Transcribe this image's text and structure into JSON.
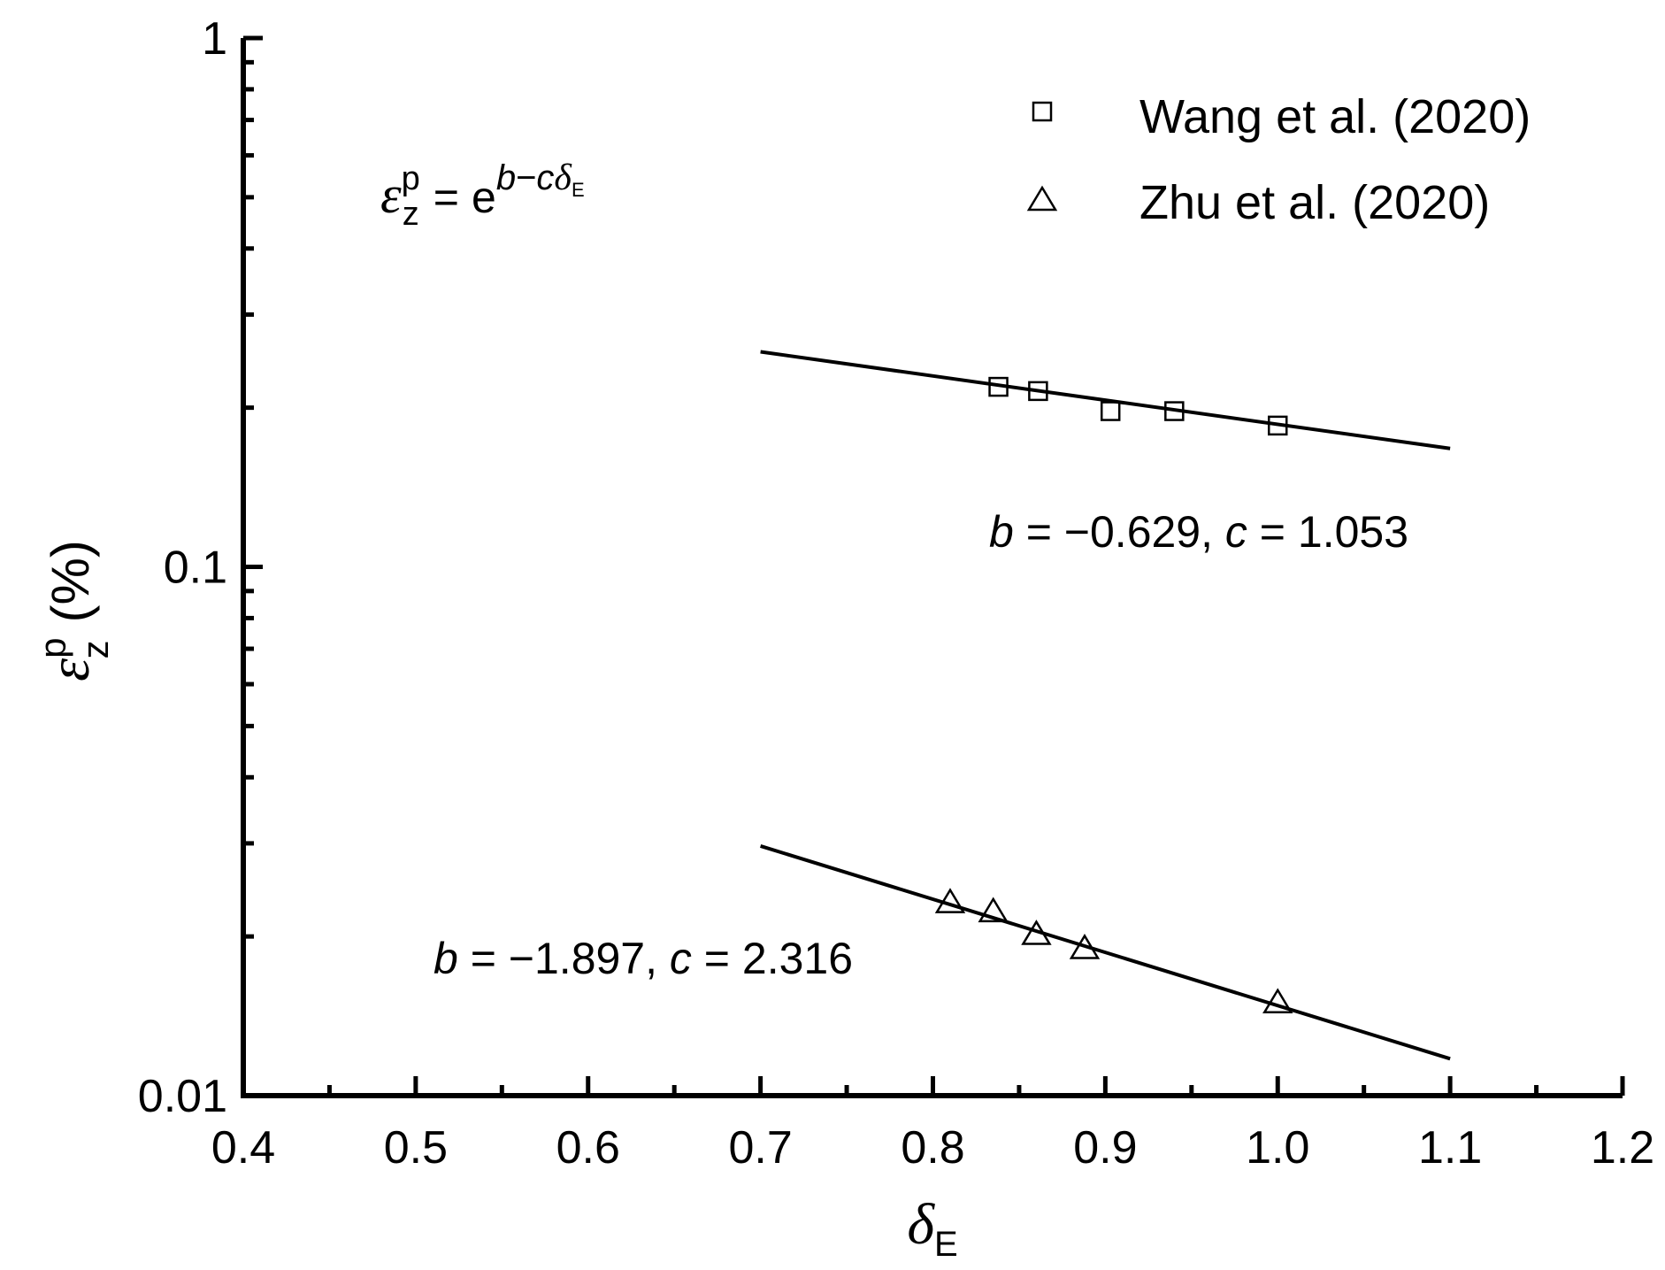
{
  "chart_data": {
    "type": "scatter",
    "x_axis": {
      "symbol": "δ",
      "subscript": "E",
      "range": [
        0.4,
        1.2
      ],
      "ticks": [
        "0.4",
        "0.5",
        "0.6",
        "0.7",
        "0.8",
        "0.9",
        "1.0",
        "1.1",
        "1.2"
      ],
      "minor_step": 0.05
    },
    "y_axis": {
      "symbol": "ε",
      "superscript": "p",
      "subscript": "z",
      "unit": "(%)",
      "scale": "log",
      "range": [
        0.01,
        1
      ],
      "ticks": [
        "0.01",
        "0.1",
        "1"
      ]
    },
    "equation": {
      "lhs_symbol": "ε",
      "lhs_sup": "p",
      "lhs_sub": "z",
      "equals": "=",
      "base": "e",
      "exp_b": "b",
      "exp_minus": "−",
      "exp_c": "c",
      "exp_delta": "δ",
      "exp_sub": "E"
    },
    "series": [
      {
        "name": "Wang et al. (2020)",
        "marker": "square",
        "points": [
          {
            "x": 0.838,
            "y": 0.219
          },
          {
            "x": 0.861,
            "y": 0.215
          },
          {
            "x": 0.903,
            "y": 0.197
          },
          {
            "x": 0.94,
            "y": 0.197
          },
          {
            "x": 1.0,
            "y": 0.185
          }
        ],
        "fit": {
          "b": -0.629,
          "c": 1.053,
          "x_range": [
            0.7,
            1.1
          ]
        },
        "fit_label": {
          "b_sym": "b",
          "b_text": " = −0.629, ",
          "c_sym": "c",
          "c_text": " = 1.053"
        }
      },
      {
        "name": "Zhu et al. (2020)",
        "marker": "triangle",
        "points": [
          {
            "x": 0.81,
            "y": 0.0232
          },
          {
            "x": 0.835,
            "y": 0.0223
          },
          {
            "x": 0.86,
            "y": 0.0202
          },
          {
            "x": 0.888,
            "y": 0.019
          },
          {
            "x": 1.0,
            "y": 0.015
          }
        ],
        "fit": {
          "b": -1.897,
          "c": 2.316,
          "x_range": [
            0.7,
            1.1
          ]
        },
        "fit_label": {
          "b_sym": "b",
          "b_text": " = −1.897, ",
          "c_sym": "c",
          "c_text": " = 2.316"
        }
      }
    ],
    "legend_position": "top-right",
    "grid": false,
    "line_color": "#000000",
    "marker_color": "#000000"
  }
}
